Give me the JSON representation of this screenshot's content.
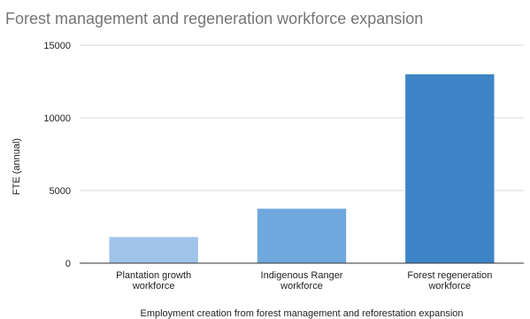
{
  "chart_data": {
    "type": "bar",
    "title": "Forest management and regeneration workforce expansion",
    "xlabel": "Employment creation from forest management and reforestation expansion",
    "ylabel": "FTE (annual)",
    "categories": [
      [
        "Plantation growth",
        "workforce"
      ],
      [
        "Indigenous Ranger",
        "workforce"
      ],
      [
        "Forest regeneration",
        "workforce"
      ]
    ],
    "values": [
      1800,
      3750,
      13000
    ],
    "yticks": [
      "0",
      "5000",
      "10000",
      "15000"
    ],
    "ylim": [
      0,
      15000
    ],
    "grid": true,
    "legend": "none",
    "colors": [
      "#a0c3ea",
      "#6fa8dc",
      "#3d85c6"
    ],
    "grid_color": "#d9d9d9",
    "axis_color": "#333333"
  }
}
